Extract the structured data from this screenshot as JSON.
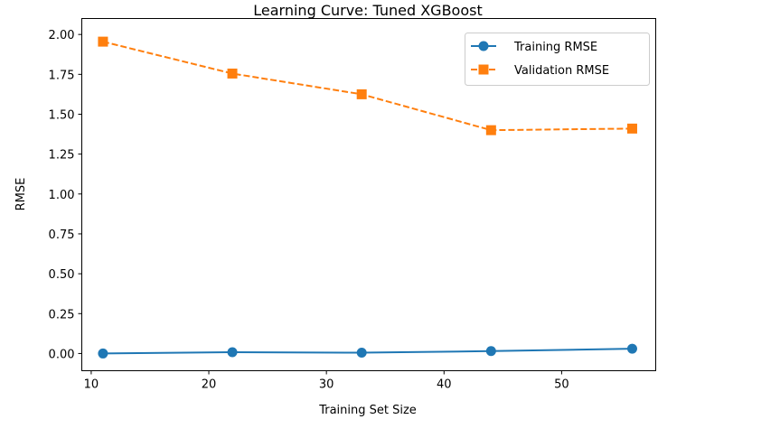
{
  "chart_data": {
    "type": "line",
    "title": "Learning Curve: Tuned XGBoost",
    "xlabel": "Training Set Size",
    "ylabel": "RMSE",
    "xlim": [
      9.2,
      58.0
    ],
    "ylim": [
      -0.108,
      2.1
    ],
    "xticks": [
      10,
      20,
      30,
      40,
      50
    ],
    "yticks": [
      0.0,
      0.25,
      0.5,
      0.75,
      1.0,
      1.25,
      1.5,
      1.75,
      2.0
    ],
    "ytick_labels": [
      "0.00",
      "0.25",
      "0.50",
      "0.75",
      "1.00",
      "1.25",
      "1.50",
      "1.75",
      "2.00"
    ],
    "xtick_labels": [
      "10",
      "20",
      "30",
      "40",
      "50"
    ],
    "grid": false,
    "legend_position": "top-right",
    "x": [
      11,
      22,
      33,
      44,
      56
    ],
    "series": [
      {
        "name": "Training RMSE",
        "values": [
          0.0,
          0.008,
          0.005,
          0.015,
          0.03
        ],
        "color": "#1f77b4",
        "marker": "circle",
        "linestyle": "solid"
      },
      {
        "name": "Validation RMSE",
        "values": [
          1.955,
          1.755,
          1.625,
          1.4,
          1.41
        ],
        "color": "#ff7f0e",
        "marker": "square",
        "linestyle": "dashed"
      }
    ]
  }
}
